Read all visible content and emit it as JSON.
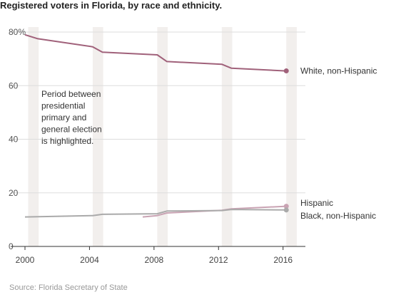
{
  "chart_data": {
    "type": "line",
    "title": "Registered voters in Florida, by race and ethnicity.",
    "source": "Source: Florida Secretary of State",
    "annotation": [
      "Period between",
      "presidential",
      "primary and",
      "general election",
      "is highlighted."
    ],
    "xlim": [
      2000,
      2016.5
    ],
    "ylim": [
      0,
      80
    ],
    "x_ticks": [
      2000,
      2004,
      2008,
      2012,
      2016
    ],
    "y_ticks": [
      0,
      20,
      40,
      60,
      80
    ],
    "y_tick_labels": [
      "0",
      "20",
      "40",
      "60",
      "80%"
    ],
    "grid": "horizontal",
    "highlight_periods": [
      [
        2000.2,
        2000.85
      ],
      [
        2004.2,
        2004.85
      ],
      [
        2008.2,
        2008.85
      ],
      [
        2012.2,
        2012.85
      ],
      [
        2016.2,
        2016.85
      ]
    ],
    "series": [
      {
        "name": "White, non-Hispanic",
        "color": "#a0617a",
        "x": [
          2000,
          2000.8,
          2004.2,
          2004.8,
          2008.2,
          2008.8,
          2012.2,
          2012.8,
          2016.2
        ],
        "y": [
          79,
          77.5,
          74.5,
          72.5,
          71.5,
          69,
          68,
          66.5,
          65.5
        ]
      },
      {
        "name": "Hispanic",
        "color": "#c9a3b3",
        "x": [
          2007.3,
          2008.2,
          2008.8,
          2012.2,
          2012.8,
          2016.2
        ],
        "y": [
          11,
          11.5,
          12.5,
          13.5,
          14,
          15
        ]
      },
      {
        "name": "Black, non-Hispanic",
        "color": "#aaaaaa",
        "x": [
          2000,
          2004.2,
          2004.8,
          2008.2,
          2008.8,
          2012.2,
          2012.8,
          2016.2
        ],
        "y": [
          11,
          11.5,
          12,
          12.2,
          13.2,
          13.4,
          13.8,
          13.6
        ]
      }
    ]
  }
}
